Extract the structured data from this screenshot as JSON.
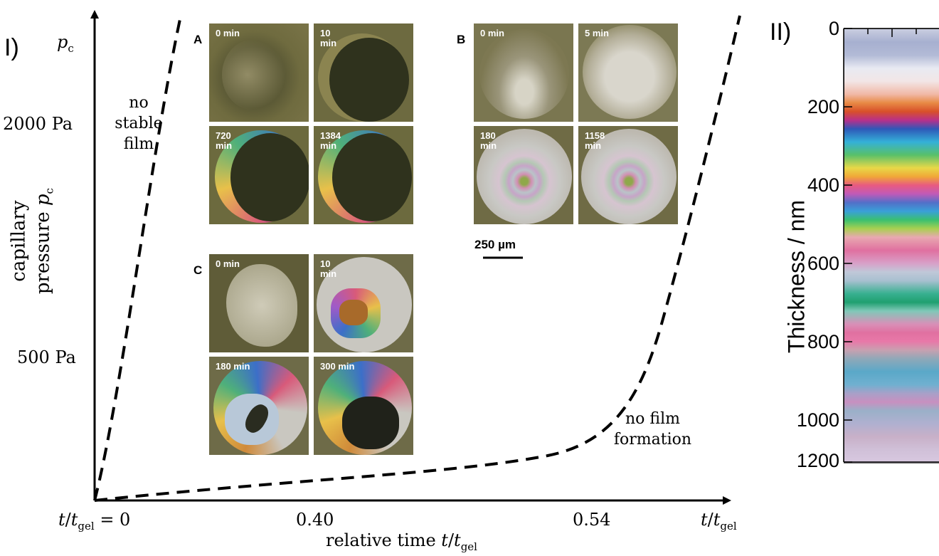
{
  "panel_I": {
    "label": "I)",
    "y_axis": {
      "top_symbol": "p",
      "top_symbol_sub": "c",
      "label_line1": "capillary",
      "label_line2_text": "pressure ",
      "label_line2_sym": "p",
      "label_line2_sub": "c",
      "ticks": [
        "2000 Pa",
        "500 Pa"
      ]
    },
    "x_axis": {
      "origin_label_t": "t",
      "origin_label_sub": "gel",
      "origin_label_rest": " = 0",
      "ticks": [
        "0.40",
        "0.54"
      ],
      "end_label_t": "t",
      "end_label_sub": "gel",
      "label_text": "relative time ",
      "label_t": "t",
      "label_sub": "gel"
    },
    "regions": {
      "left_line1": "no",
      "left_line2": "stable",
      "left_line3": "film",
      "right_line1": "no film",
      "right_line2": "formation"
    },
    "insets": {
      "A": {
        "letter": "A",
        "times": [
          "0 min",
          "10 min",
          "720 min",
          "1384 min"
        ]
      },
      "B": {
        "letter": "B",
        "times": [
          "0 min",
          "5 min",
          "180 min",
          "1158 min"
        ]
      },
      "C": {
        "letter": "C",
        "times": [
          "0 min",
          "10 min",
          "180 min",
          "300 min"
        ]
      },
      "scale_bar": "250 µm"
    }
  },
  "panel_II": {
    "label": "II)",
    "y_title": "Thickness / nm",
    "ticks": [
      "0",
      "200",
      "400",
      "600",
      "800",
      "1000",
      "1200"
    ]
  }
}
